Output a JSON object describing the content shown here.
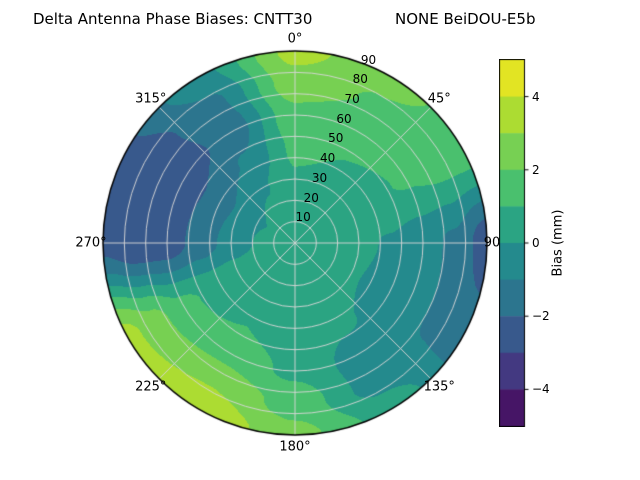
{
  "header": {
    "title_left": "Delta Antenna Phase Biases: CNTT30",
    "title_right": "NONE BeiDOU-E5b"
  },
  "chart_data": {
    "type": "heatmap",
    "projection": "polar",
    "title": "Delta Antenna Phase Biases: CNTT30          NONE BeiDOU-E5b",
    "station": "CNTT30",
    "signal": "NONE BeiDOU-E5b",
    "colormap": "viridis",
    "value_range": [
      -5,
      5
    ],
    "contour_level_step": 1,
    "grid": "on",
    "theta_ticks": [
      {
        "angle": 0,
        "label": "0°"
      },
      {
        "angle": 45,
        "label": "45°"
      },
      {
        "angle": 90,
        "label": "90"
      },
      {
        "angle": 135,
        "label": "135°"
      },
      {
        "angle": 180,
        "label": "180°"
      },
      {
        "angle": 225,
        "label": "225°"
      },
      {
        "angle": 270,
        "label": "270°"
      },
      {
        "angle": 315,
        "label": "315°"
      }
    ],
    "radial_ticks": [
      {
        "r": 10,
        "label": "10"
      },
      {
        "r": 20,
        "label": "20"
      },
      {
        "r": 30,
        "label": "30"
      },
      {
        "r": 40,
        "label": "40"
      },
      {
        "r": 50,
        "label": "50"
      },
      {
        "r": 60,
        "label": "60"
      },
      {
        "r": 70,
        "label": "70"
      },
      {
        "r": 80,
        "label": "80"
      },
      {
        "r": 90,
        "label": "90"
      }
    ],
    "radial_max": 90,
    "radial_label_azimuth_deg": 22.5,
    "colorbar": {
      "label": "Bias (mm)",
      "ticks": [
        {
          "v": 4,
          "label": "4"
        },
        {
          "v": 2,
          "label": "2"
        },
        {
          "v": 0,
          "label": "0"
        },
        {
          "v": -2,
          "label": "−2"
        },
        {
          "v": -4,
          "label": "−4"
        }
      ]
    },
    "azimuth_deg": [
      0,
      30,
      60,
      90,
      120,
      150,
      180,
      210,
      240,
      270,
      300,
      330,
      360
    ],
    "radius": [
      0,
      15,
      30,
      45,
      60,
      75,
      90
    ],
    "bias_grid_mm": [
      [
        0.5,
        0.6,
        0.9,
        1.2,
        1.7,
        2.6,
        3.3
      ],
      [
        0.5,
        0.6,
        0.8,
        1.0,
        1.4,
        1.9,
        2.3
      ],
      [
        0.5,
        0.5,
        0.7,
        0.9,
        1.1,
        1.4,
        1.6
      ],
      [
        0.5,
        0.4,
        0.2,
        -0.1,
        -0.6,
        -1.2,
        -2.6
      ],
      [
        0.5,
        0.3,
        0.1,
        -0.3,
        -0.7,
        -1.1,
        -1.4
      ],
      [
        0.5,
        0.4,
        0.3,
        0.1,
        -0.4,
        -0.4,
        0.6
      ],
      [
        0.5,
        0.5,
        0.5,
        0.6,
        0.8,
        1.6,
        2.3
      ],
      [
        0.5,
        0.6,
        0.8,
        1.0,
        1.6,
        2.9,
        3.9
      ],
      [
        0.5,
        0.5,
        0.6,
        0.8,
        1.3,
        2.4,
        3.4
      ],
      [
        0.5,
        0.2,
        -0.6,
        -1.6,
        -2.6,
        -2.8,
        -2.3
      ],
      [
        0.5,
        0.0,
        -0.9,
        -1.9,
        -2.6,
        -2.5,
        -2.1
      ],
      [
        0.5,
        0.3,
        -0.1,
        -0.9,
        -1.6,
        -1.2,
        -0.3
      ],
      [
        0.5,
        0.6,
        0.9,
        1.2,
        1.7,
        2.6,
        3.3
      ]
    ]
  }
}
